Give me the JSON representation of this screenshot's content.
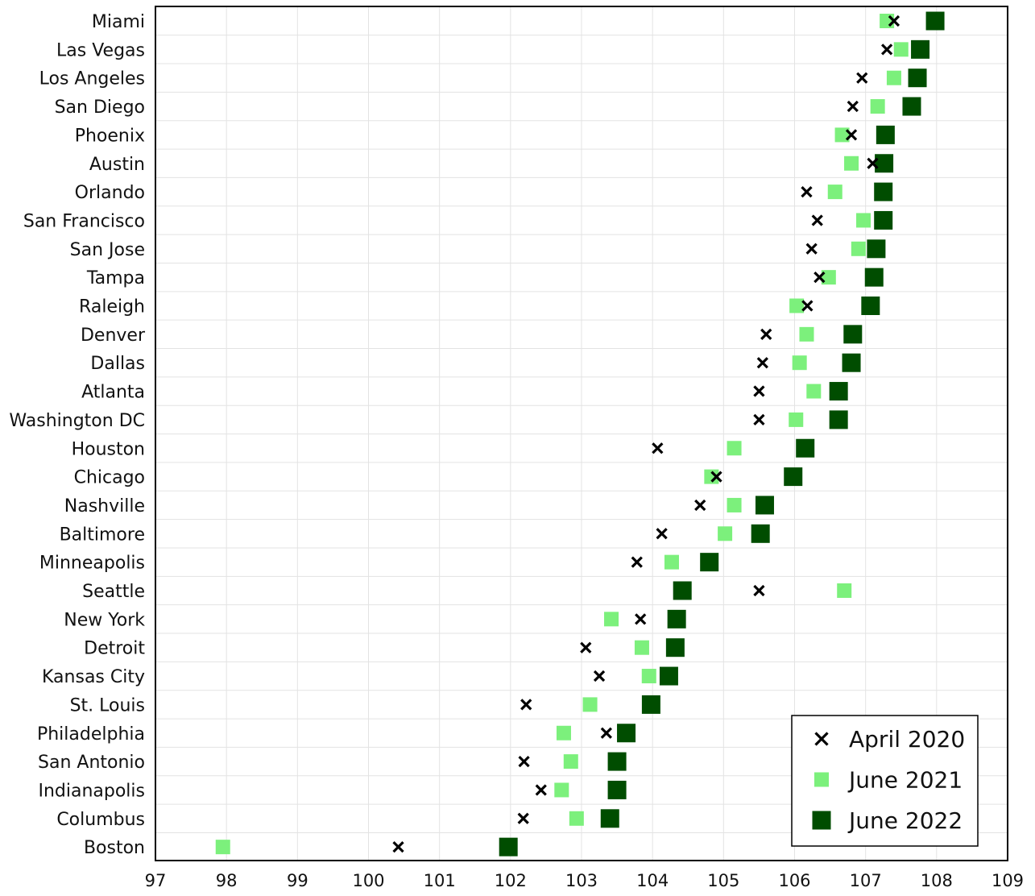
{
  "chart_data": {
    "type": "scatter",
    "orientation": "horizontal",
    "title": "",
    "xlabel": "",
    "ylabel": "",
    "xlim": [
      97,
      109
    ],
    "xticks": [
      97,
      98,
      99,
      100,
      101,
      102,
      103,
      104,
      105,
      106,
      107,
      108,
      109
    ],
    "grid": true,
    "legend_position": "bottom-right",
    "categories": [
      "Miami",
      "Las Vegas",
      "Los Angeles",
      "San Diego",
      "Phoenix",
      "Austin",
      "Orlando",
      "San Francisco",
      "San Jose",
      "Tampa",
      "Raleigh",
      "Denver",
      "Dallas",
      "Atlanta",
      "Washington DC",
      "Houston",
      "Chicago",
      "Nashville",
      "Baltimore",
      "Minneapolis",
      "Seattle",
      "New York",
      "Detroit",
      "Kansas City",
      "St. Louis",
      "Philadelphia",
      "San Antonio",
      "Indianapolis",
      "Columbus",
      "Boston"
    ],
    "series": [
      {
        "name": "April 2020",
        "marker": "x",
        "color": "#000000",
        "values": [
          107.4,
          107.3,
          106.95,
          106.82,
          106.8,
          107.1,
          106.17,
          106.32,
          106.24,
          106.35,
          106.18,
          105.6,
          105.55,
          105.5,
          105.5,
          104.07,
          104.9,
          104.67,
          104.13,
          103.78,
          105.5,
          103.83,
          103.06,
          103.25,
          102.22,
          103.35,
          102.19,
          102.43,
          102.18,
          100.42
        ]
      },
      {
        "name": "June 2021",
        "marker": "square",
        "color": "#7cf07c",
        "values": [
          107.3,
          107.5,
          107.4,
          107.17,
          106.67,
          106.8,
          106.57,
          106.97,
          106.9,
          106.48,
          106.03,
          106.17,
          106.07,
          106.27,
          106.02,
          105.15,
          104.83,
          105.15,
          105.02,
          104.27,
          106.7,
          103.42,
          103.85,
          103.95,
          103.12,
          102.75,
          102.85,
          102.72,
          102.93,
          97.95
        ]
      },
      {
        "name": "June 2022",
        "marker": "square",
        "color": "#004d00",
        "values": [
          107.98,
          107.77,
          107.73,
          107.65,
          107.28,
          107.26,
          107.25,
          107.25,
          107.15,
          107.12,
          107.07,
          106.82,
          106.8,
          106.62,
          106.62,
          106.15,
          105.98,
          105.58,
          105.52,
          104.8,
          104.42,
          104.34,
          104.32,
          104.23,
          103.98,
          103.63,
          103.5,
          103.5,
          103.4,
          101.97
        ]
      }
    ]
  }
}
